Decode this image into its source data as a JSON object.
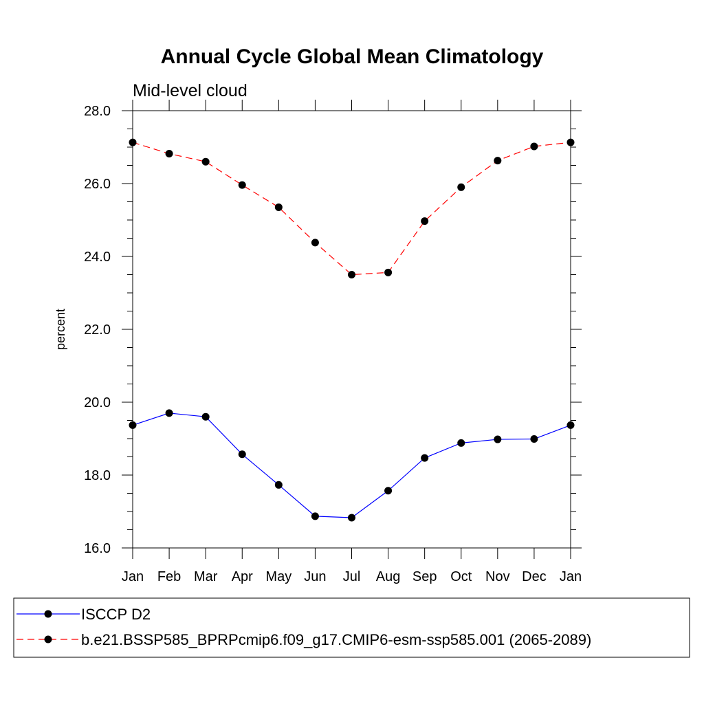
{
  "chart_data": {
    "type": "line",
    "title": "Annual Cycle Global Mean Climatology",
    "subtitle": "Mid-level cloud",
    "xlabel": "",
    "ylabel": "percent",
    "categories": [
      "Jan",
      "Feb",
      "Mar",
      "Apr",
      "May",
      "Jun",
      "Jul",
      "Aug",
      "Sep",
      "Oct",
      "Nov",
      "Dec",
      "Jan"
    ],
    "ylim": [
      16.0,
      28.0
    ],
    "yticks": [
      "16.0",
      "18.0",
      "20.0",
      "22.0",
      "24.0",
      "26.0",
      "28.0"
    ],
    "grid": false,
    "legend_position": "bottom",
    "series": [
      {
        "name": "ISCCP D2",
        "color": "#0000ff",
        "line_style": "solid",
        "marker": "filled-circle",
        "values": [
          19.37,
          19.7,
          19.6,
          18.57,
          17.73,
          16.87,
          16.83,
          17.57,
          18.47,
          18.88,
          18.98,
          18.99,
          19.37
        ]
      },
      {
        "name": "b.e21.BSSP585_BPRPcmip6.f09_g17.CMIP6-esm-ssp585.001 (2065-2089)",
        "color": "#ff0000",
        "line_style": "dashed",
        "marker": "filled-circle",
        "values": [
          27.13,
          26.82,
          26.6,
          25.96,
          25.35,
          24.38,
          23.5,
          23.56,
          24.97,
          25.9,
          26.63,
          27.02,
          27.13
        ]
      }
    ]
  }
}
